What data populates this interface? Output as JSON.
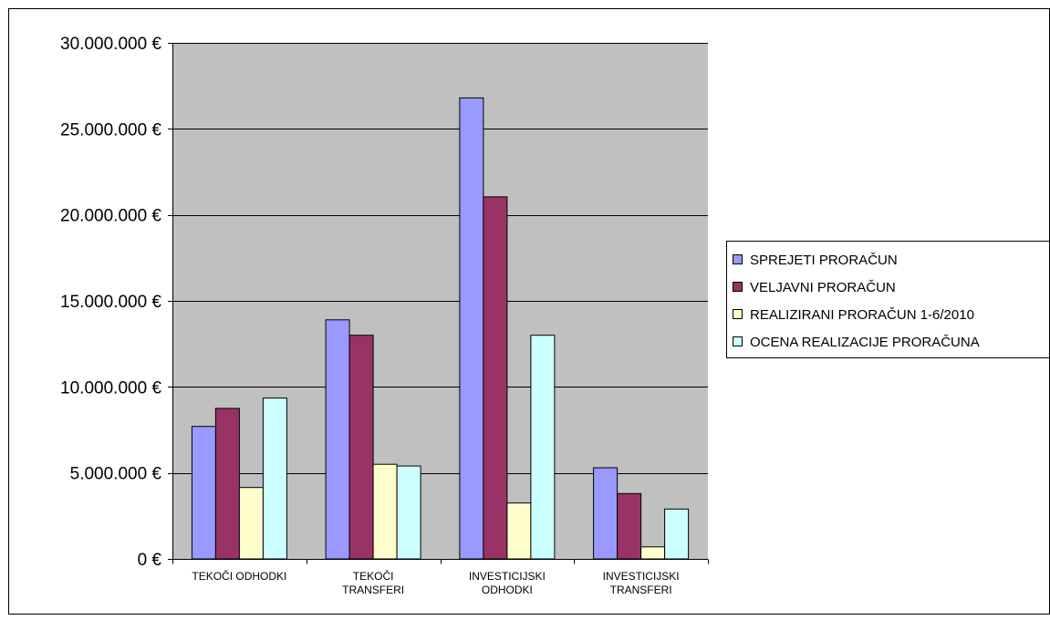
{
  "chart_data": {
    "type": "bar",
    "title": "",
    "xlabel": "",
    "ylabel": "",
    "ylim": [
      0,
      30000000
    ],
    "yticks": [
      {
        "value": 0,
        "label": "0 €"
      },
      {
        "value": 5000000,
        "label": "5.000.000 €"
      },
      {
        "value": 10000000,
        "label": "10.000.000 €"
      },
      {
        "value": 15000000,
        "label": "15.000.000 €"
      },
      {
        "value": 20000000,
        "label": "20.000.000 €"
      },
      {
        "value": 25000000,
        "label": "25.000.000 €"
      },
      {
        "value": 30000000,
        "label": "30.000.000 €"
      }
    ],
    "categories": [
      [
        "TEKOČI ODHODKI"
      ],
      [
        "TEKOČI",
        "TRANSFERI"
      ],
      [
        "INVESTICIJSKI",
        "ODHODKI"
      ],
      [
        "INVESTICIJSKI",
        "TRANSFERI"
      ]
    ],
    "series": [
      {
        "name": "SPREJETI PRORAČUN",
        "color": "#9999ff",
        "values": [
          7700000,
          13900000,
          26800000,
          5300000
        ]
      },
      {
        "name": "VELJAVNI PRORAČUN",
        "color": "#993366",
        "values": [
          8750000,
          13000000,
          21050000,
          3800000
        ]
      },
      {
        "name": "REALIZIRANI PRORAČUN 1-6/2010",
        "color": "#ffffcc",
        "values": [
          4150000,
          5500000,
          3250000,
          700000
        ]
      },
      {
        "name": "OCENA REALIZACIJE PRORAČUNA",
        "color": "#ccffff",
        "values": [
          9350000,
          5400000,
          13000000,
          2900000
        ]
      }
    ],
    "grid": true,
    "plot_background": "#c0c0c0",
    "legend_position": "right"
  }
}
